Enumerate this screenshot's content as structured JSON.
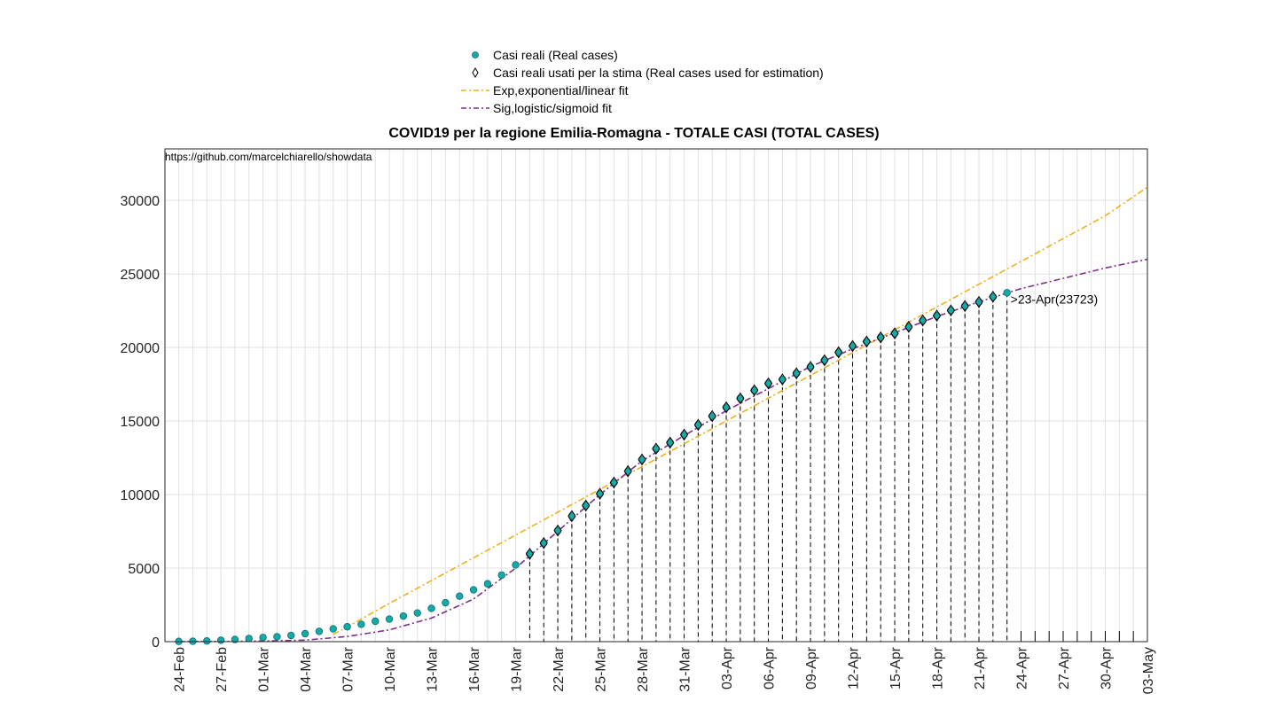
{
  "chart_data": {
    "type": "line",
    "title": "COVID19 per la regione Emilia-Romagna - TOTALE CASI (TOTAL CASES)",
    "source_note": "https://github.com/marcelchiarello/showdata",
    "xlabel": "",
    "ylabel": "",
    "x_range": [
      "2020-02-24",
      "2020-05-03"
    ],
    "ylim": [
      0,
      33500
    ],
    "y_ticks": [
      0,
      5000,
      10000,
      15000,
      20000,
      25000,
      30000
    ],
    "x_tick_labels": [
      "24-Feb",
      "27-Feb",
      "01-Mar",
      "04-Mar",
      "07-Mar",
      "10-Mar",
      "13-Mar",
      "16-Mar",
      "19-Mar",
      "22-Mar",
      "25-Mar",
      "28-Mar",
      "31-Mar",
      "03-Apr",
      "06-Apr",
      "09-Apr",
      "12-Apr",
      "15-Apr",
      "18-Apr",
      "21-Apr",
      "24-Apr",
      "27-Apr",
      "30-Apr",
      "03-May"
    ],
    "x_tick_dates": [
      "2020-02-24",
      "2020-02-27",
      "2020-03-01",
      "2020-03-04",
      "2020-03-07",
      "2020-03-10",
      "2020-03-13",
      "2020-03-16",
      "2020-03-19",
      "2020-03-22",
      "2020-03-25",
      "2020-03-28",
      "2020-03-31",
      "2020-04-03",
      "2020-04-06",
      "2020-04-09",
      "2020-04-12",
      "2020-04-15",
      "2020-04-18",
      "2020-04-21",
      "2020-04-24",
      "2020-04-27",
      "2020-04-30",
      "2020-05-03"
    ],
    "grid": true,
    "legend_position": "top-center",
    "annotation": {
      "date": "2020-04-23",
      "y": 23723,
      "text": ">23-Apr(23723)"
    },
    "series": [
      {
        "name": "Casi reali (Real cases)",
        "kind": "markers-circle",
        "color": "#17a8a8",
        "dates": [
          "2020-02-24",
          "2020-02-25",
          "2020-02-26",
          "2020-02-27",
          "2020-02-28",
          "2020-02-29",
          "2020-03-01",
          "2020-03-02",
          "2020-03-03",
          "2020-03-04",
          "2020-03-05",
          "2020-03-06",
          "2020-03-07",
          "2020-03-08",
          "2020-03-09",
          "2020-03-10",
          "2020-03-11",
          "2020-03-12",
          "2020-03-13",
          "2020-03-14",
          "2020-03-15",
          "2020-03-16",
          "2020-03-17",
          "2020-03-18",
          "2020-03-19",
          "2020-03-20",
          "2020-03-21",
          "2020-03-22",
          "2020-03-23",
          "2020-03-24",
          "2020-03-25",
          "2020-03-26",
          "2020-03-27",
          "2020-03-28",
          "2020-03-29",
          "2020-03-30",
          "2020-03-31",
          "2020-04-01",
          "2020-04-02",
          "2020-04-03",
          "2020-04-04",
          "2020-04-05",
          "2020-04-06",
          "2020-04-07",
          "2020-04-08",
          "2020-04-09",
          "2020-04-10",
          "2020-04-11",
          "2020-04-12",
          "2020-04-13",
          "2020-04-14",
          "2020-04-15",
          "2020-04-16",
          "2020-04-17",
          "2020-04-18",
          "2020-04-19",
          "2020-04-20",
          "2020-04-21",
          "2020-04-22",
          "2020-04-23"
        ],
        "values": [
          18,
          26,
          47,
          97,
          145,
          217,
          285,
          335,
          420,
          544,
          698,
          870,
          1010,
          1180,
          1386,
          1533,
          1739,
          1947,
          2263,
          2644,
          3093,
          3522,
          3931,
          4525,
          5214,
          5968,
          6705,
          7555,
          8535,
          9254,
          10054,
          10816,
          11588,
          12383,
          13119,
          13531,
          14074,
          14740,
          15333,
          15930,
          16540,
          17089,
          17556,
          17825,
          18241,
          18677,
          19128,
          19670,
          20098,
          20400,
          20686,
          20961,
          21400,
          21834,
          22160,
          22519,
          22821,
          23092,
          23445,
          23723
        ]
      },
      {
        "name": "Casi reali usati per la stima (Real cases used for estimation)",
        "kind": "markers-diamond",
        "color": "#000000",
        "dates": [
          "2020-03-20",
          "2020-03-21",
          "2020-03-22",
          "2020-03-23",
          "2020-03-24",
          "2020-03-25",
          "2020-03-26",
          "2020-03-27",
          "2020-03-28",
          "2020-03-29",
          "2020-03-30",
          "2020-03-31",
          "2020-04-01",
          "2020-04-02",
          "2020-04-03",
          "2020-04-04",
          "2020-04-05",
          "2020-04-06",
          "2020-04-07",
          "2020-04-08",
          "2020-04-09",
          "2020-04-10",
          "2020-04-11",
          "2020-04-12",
          "2020-04-13",
          "2020-04-14",
          "2020-04-15",
          "2020-04-16",
          "2020-04-17",
          "2020-04-18",
          "2020-04-19",
          "2020-04-20",
          "2020-04-21",
          "2020-04-22"
        ],
        "values": [
          5968,
          6705,
          7555,
          8535,
          9254,
          10054,
          10816,
          11588,
          12383,
          13119,
          13531,
          14074,
          14740,
          15333,
          15930,
          16540,
          17089,
          17556,
          17825,
          18241,
          18677,
          19128,
          19670,
          20098,
          20400,
          20686,
          20961,
          21400,
          21834,
          22160,
          22519,
          22821,
          23092,
          23445
        ]
      },
      {
        "name": "Exp,exponential/linear fit",
        "kind": "dashdot-line",
        "color": "#edb120",
        "dates": [
          "2020-03-06",
          "2020-03-07",
          "2020-03-10",
          "2020-03-13",
          "2020-03-16",
          "2020-03-19",
          "2020-03-22",
          "2020-03-25",
          "2020-03-28",
          "2020-03-31",
          "2020-04-03",
          "2020-04-06",
          "2020-04-09",
          "2020-04-12",
          "2020-04-15",
          "2020-04-18",
          "2020-04-21",
          "2020-04-24",
          "2020-04-27",
          "2020-04-30",
          "2020-05-03"
        ],
        "values": [
          500,
          1000,
          2600,
          4150,
          5700,
          7250,
          8800,
          10350,
          11900,
          13450,
          15000,
          16550,
          18100,
          19650,
          21200,
          22750,
          24300,
          25850,
          27400,
          28950,
          30900
        ]
      },
      {
        "name": "Sig,logistic/sigmoid fit",
        "kind": "dashdot-line",
        "color": "#7e2f8e",
        "dates": [
          "2020-02-24",
          "2020-02-27",
          "2020-03-01",
          "2020-03-04",
          "2020-03-07",
          "2020-03-10",
          "2020-03-13",
          "2020-03-16",
          "2020-03-19",
          "2020-03-22",
          "2020-03-25",
          "2020-03-28",
          "2020-03-31",
          "2020-04-03",
          "2020-04-06",
          "2020-04-09",
          "2020-04-12",
          "2020-04-15",
          "2020-04-18",
          "2020-04-21",
          "2020-04-24",
          "2020-04-27",
          "2020-04-30",
          "2020-05-03"
        ],
        "values": [
          5,
          15,
          40,
          100,
          350,
          800,
          1600,
          2900,
          5000,
          7500,
          10000,
          12300,
          14000,
          15700,
          17200,
          18700,
          19900,
          21000,
          22100,
          23100,
          24000,
          24700,
          25400,
          26000
        ]
      }
    ]
  }
}
